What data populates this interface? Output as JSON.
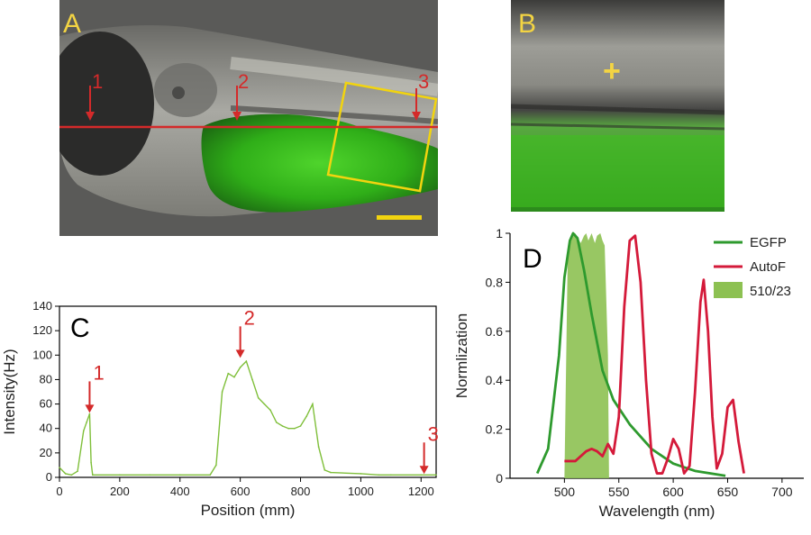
{
  "panel_a": {
    "label": "A",
    "markers": [
      "1",
      "2",
      "3"
    ]
  },
  "panel_b": {
    "label": "B",
    "mark": "+"
  },
  "colors": {
    "panel_label": "#f3d443",
    "marker_red": "#d42a2a",
    "egfp": "#2e9a2e",
    "autof": "#d41a3a",
    "filter_band": "#8dc152",
    "trace": "#7fbf3a",
    "scale_bar": "#f2d40f"
  },
  "chart_data": [
    {
      "type": "line",
      "panel_label": "C",
      "xlabel": "Position (mm)",
      "ylabel": "Intensity(Hz)",
      "xlim": [
        0,
        1250
      ],
      "ylim": [
        0,
        140
      ],
      "xticks": [
        0,
        200,
        400,
        600,
        800,
        1000,
        1200
      ],
      "yticks": [
        0,
        20,
        40,
        60,
        80,
        100,
        120,
        140
      ],
      "annotations": [
        {
          "text": "1",
          "x": 100,
          "y": 52
        },
        {
          "text": "2",
          "x": 600,
          "y": 97
        },
        {
          "text": "3",
          "x": 1210,
          "y": 2
        }
      ],
      "series": [
        {
          "x": [
            0,
            20,
            40,
            60,
            80,
            90,
            100,
            105,
            110,
            200,
            300,
            400,
            500,
            520,
            540,
            560,
            580,
            600,
            620,
            640,
            660,
            680,
            700,
            720,
            740,
            760,
            780,
            800,
            820,
            840,
            860,
            880,
            900,
            1000,
            1060,
            1100,
            1200,
            1250
          ],
          "y": [
            8,
            3,
            2,
            5,
            38,
            45,
            52,
            12,
            2,
            2,
            2,
            2,
            2,
            10,
            70,
            85,
            82,
            90,
            95,
            80,
            65,
            60,
            55,
            45,
            42,
            40,
            40,
            42,
            50,
            60,
            25,
            6,
            4,
            3,
            2,
            2,
            2,
            2
          ]
        }
      ]
    },
    {
      "type": "line",
      "panel_label": "D",
      "xlabel": "Wavelength (nm)",
      "ylabel": "Normlization",
      "xlim": [
        450,
        720
      ],
      "ylim": [
        0,
        1
      ],
      "xticks": [
        500,
        550,
        600,
        650,
        700
      ],
      "yticks": [
        0,
        0.2,
        0.4,
        0.6,
        0.8,
        1
      ],
      "legend_position": "top-right",
      "series": [
        {
          "name": "EGFP",
          "x": [
            475,
            485,
            495,
            500,
            505,
            508,
            512,
            518,
            525,
            535,
            545,
            560,
            580,
            600,
            620,
            648
          ],
          "y": [
            0.02,
            0.12,
            0.5,
            0.82,
            0.97,
            1.0,
            0.98,
            0.85,
            0.67,
            0.44,
            0.32,
            0.22,
            0.12,
            0.06,
            0.03,
            0.01
          ]
        },
        {
          "name": "AutoF",
          "x": [
            500,
            510,
            520,
            525,
            530,
            535,
            540,
            545,
            550,
            555,
            560,
            565,
            570,
            575,
            580,
            585,
            590,
            595,
            600,
            605,
            610,
            615,
            620,
            625,
            628,
            632,
            636,
            640,
            645,
            650,
            655,
            660,
            665
          ],
          "y": [
            0.07,
            0.07,
            0.11,
            0.12,
            0.11,
            0.09,
            0.14,
            0.1,
            0.25,
            0.7,
            0.97,
            0.99,
            0.8,
            0.4,
            0.1,
            0.02,
            0.02,
            0.08,
            0.16,
            0.12,
            0.02,
            0.05,
            0.35,
            0.72,
            0.81,
            0.6,
            0.25,
            0.04,
            0.1,
            0.29,
            0.32,
            0.15,
            0.02
          ]
        },
        {
          "name": "510/23",
          "type": "area",
          "x": [
            500,
            503,
            505,
            510,
            515,
            518,
            520,
            522,
            525,
            528,
            530,
            533,
            535,
            537,
            540,
            541
          ],
          "y": [
            0,
            0.9,
            0.97,
            1.0,
            0.96,
            0.99,
            1.0,
            0.97,
            1.0,
            0.96,
            0.99,
            1.0,
            0.97,
            0.95,
            0.5,
            0
          ]
        }
      ]
    }
  ]
}
